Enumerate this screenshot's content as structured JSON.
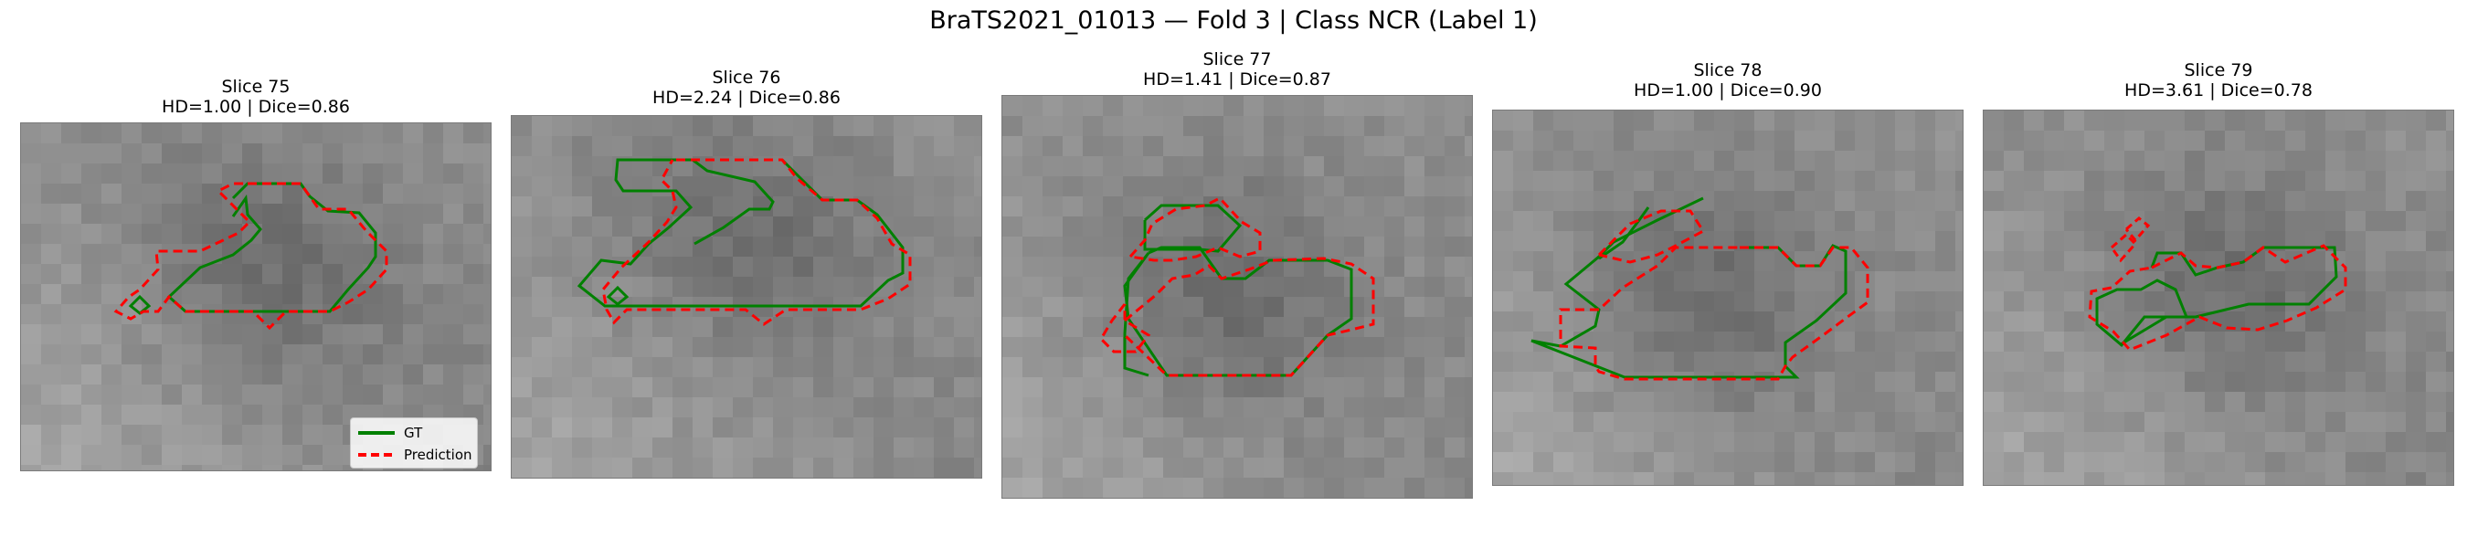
{
  "figure": {
    "title": "BraTS2021_01013 — Fold 3 | Class NCR (Label 1)"
  },
  "colors": {
    "gt": "#008000",
    "prediction": "#ff0000"
  },
  "legend": {
    "gt_label": "GT",
    "prediction_label": "Prediction"
  },
  "panels": [
    {
      "slice": "Slice 75",
      "metrics": "HD=1.00 | Dice=0.86"
    },
    {
      "slice": "Slice 76",
      "metrics": "HD=2.24 | Dice=0.86"
    },
    {
      "slice": "Slice 77",
      "metrics": "HD=1.41 | Dice=0.87"
    },
    {
      "slice": "Slice 78",
      "metrics": "HD=1.00 | Dice=0.90"
    },
    {
      "slice": "Slice 79",
      "metrics": "HD=3.61 | Dice=0.78"
    }
  ]
}
